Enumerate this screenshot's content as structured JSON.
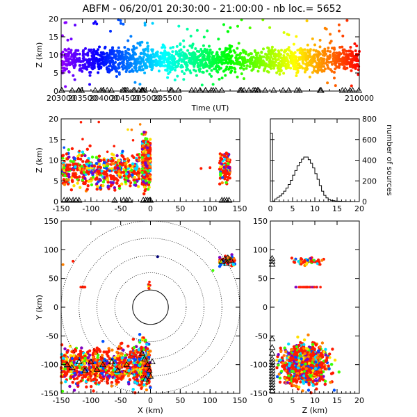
{
  "title": "ABFM - 06/20/01 20:30:00 - 21:00:00 - nb loc.=   5652",
  "chart_data": [
    {
      "id": "time_height",
      "type": "scatter",
      "xlabel": "Time (UT)",
      "ylabel": "Z (km)",
      "xlim": [
        203000,
        210000
      ],
      "ylim": [
        0,
        20
      ],
      "xticks": [
        "203000",
        "203500",
        "204000",
        "204500",
        "205000",
        "205500",
        "210000"
      ],
      "yticks": [
        "0",
        "5",
        "10",
        "15",
        "20"
      ],
      "color_encoding": "time (violet→blue→cyan→green→yellow→red)",
      "note": "dense band of sources between Z≈5 and 12 km across the whole period; station triangles at Z=0"
    },
    {
      "id": "x_z",
      "type": "scatter",
      "xlabel": "",
      "ylabel": "Z (km)",
      "xlim": [
        -150,
        150
      ],
      "ylim": [
        0,
        20
      ],
      "xticks": [
        "-150",
        "-100",
        "-50",
        "0",
        "50",
        "100",
        "150"
      ],
      "yticks": [
        "0",
        "5",
        "10",
        "15",
        "20"
      ],
      "clusters": [
        {
          "x_range": [
            -150,
            -15
          ],
          "z_range": [
            2,
            12
          ]
        },
        {
          "x_range": [
            -15,
            0
          ],
          "z_range": [
            3,
            18
          ]
        },
        {
          "x_range": [
            115,
            135
          ],
          "z_range": [
            3,
            12
          ]
        }
      ]
    },
    {
      "id": "height_histogram",
      "type": "bar",
      "xlabel": "",
      "ylabel": "number of sources",
      "xlim": [
        0,
        20
      ],
      "ylim": [
        0,
        800
      ],
      "xticks": [
        "0",
        "5",
        "10",
        "15",
        "20"
      ],
      "yticks": [
        "0",
        "200",
        "400",
        "600",
        "800"
      ],
      "bin_width": 0.5,
      "bins": [
        0,
        0.5,
        1,
        1.5,
        2,
        2.5,
        3,
        3.5,
        4,
        4.5,
        5,
        5.5,
        6,
        6.5,
        7,
        7.5,
        8,
        8.5,
        9,
        9.5,
        10,
        10.5,
        11,
        11.5,
        12,
        12.5,
        13,
        13.5,
        14,
        14.5,
        15,
        15.5,
        16,
        16.5,
        17,
        17.5,
        18,
        18.5,
        19,
        19.5
      ],
      "values": [
        660,
        5,
        25,
        40,
        55,
        75,
        100,
        130,
        165,
        205,
        255,
        300,
        345,
        380,
        410,
        430,
        430,
        405,
        370,
        325,
        270,
        215,
        155,
        100,
        60,
        35,
        20,
        12,
        8,
        5,
        4,
        3,
        2,
        2,
        1,
        1,
        1,
        0,
        0,
        0
      ]
    },
    {
      "id": "x_y",
      "type": "scatter",
      "xlabel": "X (km)",
      "ylabel": "Y (km)",
      "xlim": [
        -150,
        150
      ],
      "ylim": [
        -150,
        150
      ],
      "xticks": [
        "-150",
        "-100",
        "-50",
        "0",
        "50",
        "100",
        "150"
      ],
      "yticks": [
        "-150",
        "-100",
        "-50",
        "0",
        "50",
        "100",
        "150"
      ],
      "range_rings_km": [
        30,
        60,
        90,
        120,
        150
      ],
      "clusters": [
        {
          "x_range": [
            -150,
            -30
          ],
          "y_range": [
            -150,
            -55
          ]
        },
        {
          "x_range": [
            -30,
            0
          ],
          "y_range": [
            -150,
            -55
          ]
        },
        {
          "x_range": [
            115,
            145
          ],
          "y_range": [
            72,
            88
          ]
        },
        {
          "x_range": [
            -120,
            -100
          ],
          "y_range": [
            34,
            36
          ]
        },
        {
          "x_range": [
            -5,
            0
          ],
          "y_range": [
            30,
            45
          ]
        }
      ]
    },
    {
      "id": "z_y",
      "type": "scatter",
      "xlabel": "Z (km)",
      "ylabel": "",
      "xlim": [
        0,
        20
      ],
      "ylim": [
        -150,
        150
      ],
      "xticks": [
        "0",
        "5",
        "10",
        "15",
        "20"
      ],
      "yticks": [
        "-150",
        "-100",
        "-50",
        "0",
        "50",
        "100",
        "150"
      ]
    }
  ]
}
